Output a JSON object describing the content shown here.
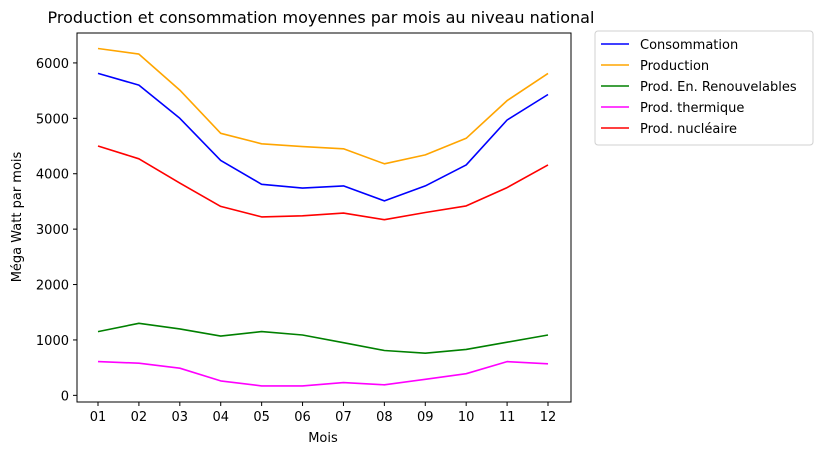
{
  "chart_data": {
    "type": "line",
    "title": "Production et consommation moyennes par mois au niveau national",
    "xlabel": "Mois",
    "ylabel": "Méga Watt par mois",
    "categories": [
      "01",
      "02",
      "03",
      "04",
      "05",
      "06",
      "07",
      "08",
      "09",
      "10",
      "11",
      "12"
    ],
    "ylim": [
      -120,
      6540
    ],
    "yticks": [
      0,
      1000,
      2000,
      3000,
      4000,
      5000,
      6000
    ],
    "grid": false,
    "legend_position": "outside top-right",
    "series": [
      {
        "name": "Consommation",
        "color": "#0000ff",
        "values": [
          5810,
          5600,
          5000,
          4240,
          3810,
          3740,
          3780,
          3510,
          3780,
          4160,
          4970,
          5430
        ]
      },
      {
        "name": "Production",
        "color": "#ffa500",
        "values": [
          6260,
          6160,
          5510,
          4730,
          4540,
          4490,
          4450,
          4180,
          4340,
          4640,
          5320,
          5810
        ]
      },
      {
        "name": "Prod. En. Renouvelables",
        "color": "#008000",
        "values": [
          1150,
          1300,
          1200,
          1070,
          1150,
          1090,
          950,
          810,
          760,
          830,
          960,
          1090
        ]
      },
      {
        "name": "Prod. thermique",
        "color": "#ff00ff",
        "values": [
          610,
          580,
          490,
          260,
          170,
          170,
          230,
          190,
          290,
          390,
          610,
          570
        ]
      },
      {
        "name": "Prod. nucléaire",
        "color": "#ff0000",
        "values": [
          4500,
          4270,
          3830,
          3410,
          3220,
          3240,
          3290,
          3170,
          3300,
          3420,
          3750,
          4160
        ]
      }
    ]
  }
}
